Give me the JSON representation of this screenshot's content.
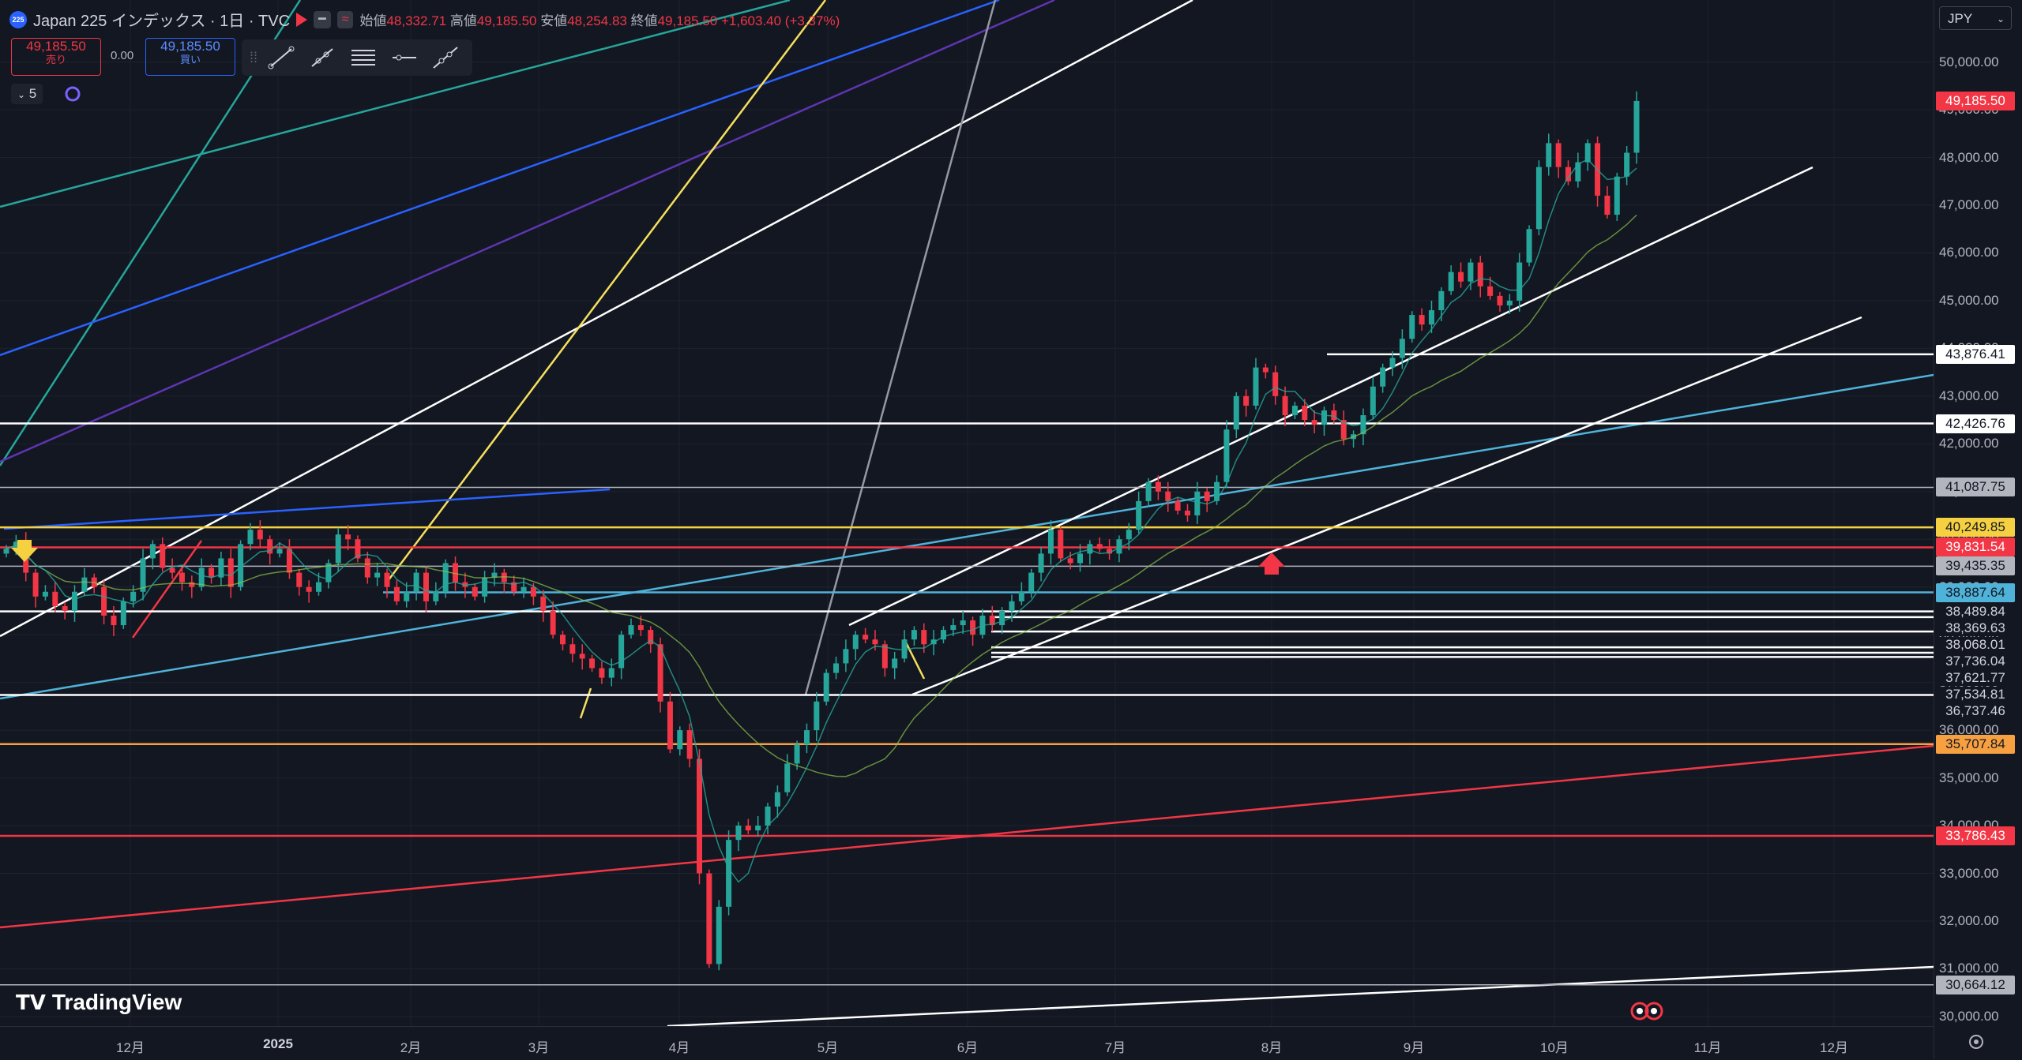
{
  "legend": {
    "symbol_badge": "225",
    "title": "Japan 225 インデックス · 1日 · TVC",
    "open_label": "始値",
    "open": "48,332.71",
    "high_label": "高値",
    "high": "49,185.50",
    "low_label": "安値",
    "low": "48,254.83",
    "close_label": "終値",
    "close": "49,185.50",
    "change": "+1,603.40 (+3.37%)"
  },
  "trade": {
    "sell_price": "49,185.50",
    "sell_label": "売り",
    "spread": "0.00",
    "buy_price": "49,185.50",
    "buy_label": "買い"
  },
  "toolbar": {
    "icons": [
      "trend-line-icon",
      "ray-icon",
      "fib-icon",
      "horizontal-line-icon",
      "extended-line-icon"
    ]
  },
  "interval": {
    "value": "5"
  },
  "currency": "JPY",
  "logo": "TradingView",
  "colors": {
    "bg": "#131722",
    "up": "#26a69a",
    "down": "#f23645",
    "text": "#b2b5be"
  },
  "chart_data": {
    "type": "candlestick",
    "title": "Japan 225 インデックス · 1日 · TVC",
    "ylim": [
      29800,
      51300
    ],
    "y_ticks": [
      "30,000.00",
      "31,000.00",
      "32,000.00",
      "33,000.00",
      "34,000.00",
      "35,000.00",
      "36,000.00",
      "37,000.00",
      "38,000.00",
      "39,000.00",
      "40,000.00",
      "41,000.00",
      "42,000.00",
      "43,000.00",
      "44,000.00",
      "45,000.00",
      "46,000.00",
      "47,000.00",
      "48,000.00",
      "49,000.00",
      "50,000.00"
    ],
    "x_ticks": [
      "12月",
      "2025",
      "2月",
      "3月",
      "4月",
      "5月",
      "6月",
      "7月",
      "8月",
      "9月",
      "10月",
      "11月",
      "12月"
    ],
    "horizontal_levels": [
      {
        "value": "43,876.41",
        "color": "#ffffff"
      },
      {
        "value": "42,426.76",
        "color": "#ffffff"
      },
      {
        "value": "41,087.75",
        "color": "#b2b5be"
      },
      {
        "value": "40,249.85",
        "color": "#f5d142"
      },
      {
        "value": "39,831.54",
        "color": "#f23645"
      },
      {
        "value": "39,435.35",
        "color": "#b2b5be"
      },
      {
        "value": "38,887.64",
        "color": "#4fb3d9"
      },
      {
        "value": "38,489.84",
        "color": "#ffffff"
      },
      {
        "value": "38,369.63",
        "color": "#ffffff"
      },
      {
        "value": "38,068.01",
        "color": "#ffffff"
      },
      {
        "value": "37,736.04",
        "color": "#ffffff"
      },
      {
        "value": "37,621.77",
        "color": "#ffffff"
      },
      {
        "value": "37,534.81",
        "color": "#ffffff"
      },
      {
        "value": "36,737.46",
        "color": "#ffffff"
      },
      {
        "value": "35,707.84",
        "color": "#f7a041"
      },
      {
        "value": "33,786.43",
        "color": "#f23645"
      },
      {
        "value": "30,664.12",
        "color": "#b2b5be"
      }
    ],
    "last_price": "49,185.50",
    "series": [
      {
        "name": "Japan 225",
        "type": "candles",
        "closes": [
          39800,
          39950,
          39300,
          38800,
          38900,
          38600,
          38500,
          38900,
          39200,
          39000,
          38400,
          38200,
          38700,
          38900,
          39600,
          39900,
          39400,
          39300,
          39100,
          39000,
          39400,
          39200,
          39600,
          39000,
          39900,
          40200,
          40000,
          39700,
          39800,
          39300,
          39000,
          38900,
          39100,
          39500,
          40100,
          40000,
          39600,
          39200,
          39300,
          39000,
          38700,
          38900,
          39300,
          38700,
          38900,
          39500,
          39100,
          39000,
          38800,
          39200,
          39300,
          39100,
          38900,
          39000,
          38800,
          38500,
          38000,
          37800,
          37600,
          37500,
          37300,
          37100,
          37300,
          38000,
          38200,
          38100,
          37800,
          36600,
          35600,
          36000,
          35400,
          33000,
          31100,
          32300,
          33700,
          34000,
          33900,
          34000,
          34400,
          34700,
          35300,
          35700,
          36000,
          36600,
          37200,
          37400,
          37700,
          38000,
          37900,
          37800,
          37300,
          37500,
          37900,
          38100,
          37800,
          37900,
          38100,
          38200,
          38300,
          38000,
          38400,
          38200,
          38500,
          38700,
          38900,
          39300,
          39700,
          40200,
          39600,
          39500,
          39700,
          39900,
          39800,
          39700,
          40000,
          40200,
          40800,
          41200,
          41000,
          40800,
          40600,
          40500,
          41000,
          40800,
          41200,
          42300,
          43000,
          42800,
          43600,
          43500,
          43000,
          42600,
          42800,
          42500,
          42400,
          42700,
          42500,
          42100,
          42200,
          42600,
          43200,
          43600,
          43800,
          44200,
          44700,
          44500,
          44800,
          45200,
          45600,
          45400,
          45800,
          45300,
          45100,
          44900,
          45000,
          45800,
          46500,
          47800,
          48300,
          47800,
          47500,
          47900,
          48300,
          47200,
          46800,
          47600,
          48100,
          49185
        ]
      }
    ],
    "annotations": {
      "arrows": [
        {
          "color": "#f5d142",
          "dir": "down"
        },
        {
          "color": "#f23645",
          "dir": "up"
        }
      ]
    }
  }
}
